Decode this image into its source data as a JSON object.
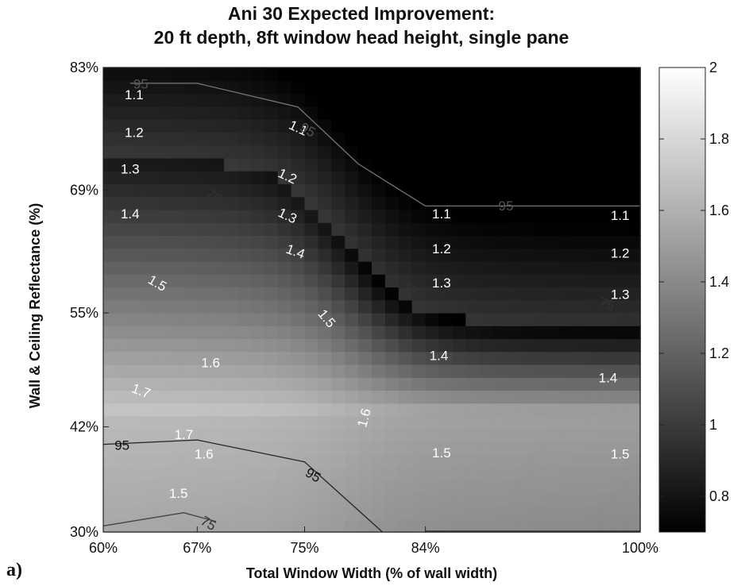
{
  "chart_data": {
    "type": "heatmap",
    "title_lines": [
      "Ani 30 Expected Improvement:",
      "20 ft depth, 8ft window head height, single pane"
    ],
    "xlabel": "Total Window Width (% of wall width)",
    "ylabel": "Wall & Ceiling Reflectance (%)",
    "x": [
      60,
      67,
      75,
      84,
      100
    ],
    "x_tick_labels": [
      "60%",
      "67%",
      "75%",
      "84%",
      "100%"
    ],
    "y": [
      30,
      42,
      55,
      69,
      83
    ],
    "y_tick_labels": [
      "30%",
      "42%",
      "55%",
      "69%",
      "83%"
    ],
    "xlim": [
      60,
      100
    ],
    "ylim": [
      30,
      83
    ],
    "colorbar": {
      "range": [
        0.7,
        2.0
      ],
      "ticks": [
        0.8,
        1.0,
        1.2,
        1.4,
        1.6,
        1.8,
        2.0
      ],
      "tick_labels": [
        "0.8",
        "1",
        "1.2",
        "1.4",
        "1.6",
        "1.8",
        "2"
      ],
      "colormap": "gray"
    },
    "value_levels": [
      "1.1",
      "1.2",
      "1.3",
      "1.4",
      "1.5",
      "1.6",
      "1.7"
    ],
    "contour_labels": [
      {
        "text": "1.1",
        "x": 62.3,
        "y": 79.8,
        "angle": 0,
        "color": "white"
      },
      {
        "text": "1.2",
        "x": 62.3,
        "y": 75.5,
        "angle": 0,
        "color": "white"
      },
      {
        "text": "1.3",
        "x": 62.0,
        "y": 71.3,
        "angle": 0,
        "color": "white"
      },
      {
        "text": "1.4",
        "x": 62.0,
        "y": 66.2,
        "angle": 0,
        "color": "white"
      },
      {
        "text": "1.5",
        "x": 64.0,
        "y": 58.3,
        "angle": 30,
        "color": "white"
      },
      {
        "text": "1.6",
        "x": 68.0,
        "y": 49.2,
        "angle": 0,
        "color": "white"
      },
      {
        "text": "1.7",
        "x": 62.8,
        "y": 46.0,
        "angle": 20,
        "color": "white"
      },
      {
        "text": "1.7",
        "x": 66.0,
        "y": 41.0,
        "angle": 0,
        "color": "white"
      },
      {
        "text": "1.6",
        "x": 67.5,
        "y": 38.8,
        "angle": 0,
        "color": "white"
      },
      {
        "text": "1.5",
        "x": 65.6,
        "y": 34.3,
        "angle": 0,
        "color": "white"
      },
      {
        "text": "1.1",
        "x": 74.5,
        "y": 76.0,
        "angle": 25,
        "color": "white"
      },
      {
        "text": "1.2",
        "x": 73.7,
        "y": 70.5,
        "angle": 25,
        "color": "white"
      },
      {
        "text": "1.3",
        "x": 73.7,
        "y": 66.0,
        "angle": 25,
        "color": "white"
      },
      {
        "text": "1.4",
        "x": 74.3,
        "y": 61.9,
        "angle": 20,
        "color": "white"
      },
      {
        "text": "1.5",
        "x": 76.6,
        "y": 54.3,
        "angle": 50,
        "color": "white"
      },
      {
        "text": "1.6",
        "x": 79.5,
        "y": 43.0,
        "angle": -75,
        "color": "white"
      },
      {
        "text": "1.1",
        "x": 85.2,
        "y": 66.2,
        "angle": 0,
        "color": "white"
      },
      {
        "text": "1.2",
        "x": 85.2,
        "y": 62.2,
        "angle": 0,
        "color": "white"
      },
      {
        "text": "1.3",
        "x": 85.2,
        "y": 58.3,
        "angle": 0,
        "color": "white"
      },
      {
        "text": "1.4",
        "x": 85.0,
        "y": 50.0,
        "angle": 0,
        "color": "white"
      },
      {
        "text": "1.5",
        "x": 85.2,
        "y": 38.9,
        "angle": 0,
        "color": "white"
      },
      {
        "text": "1.1",
        "x": 98.5,
        "y": 66.0,
        "angle": 0,
        "color": "white"
      },
      {
        "text": "1.2",
        "x": 98.5,
        "y": 61.7,
        "angle": 0,
        "color": "white"
      },
      {
        "text": "1.3",
        "x": 98.5,
        "y": 57.0,
        "angle": 0,
        "color": "white"
      },
      {
        "text": "1.4",
        "x": 97.6,
        "y": 47.5,
        "angle": 0,
        "color": "white"
      },
      {
        "text": "1.5",
        "x": 98.5,
        "y": 38.8,
        "angle": 0,
        "color": "white"
      },
      {
        "text": "95",
        "x": 62.8,
        "y": 81.0,
        "angle": 0,
        "color": "#555555"
      },
      {
        "text": "95",
        "x": 75.2,
        "y": 75.8,
        "angle": 30,
        "color": "#555555"
      },
      {
        "text": "95",
        "x": 90.0,
        "y": 67.1,
        "angle": 0,
        "color": "#555555"
      },
      {
        "text": "95",
        "x": 61.4,
        "y": 39.8,
        "angle": 0,
        "color": "#111111"
      },
      {
        "text": "95",
        "x": 75.6,
        "y": 36.4,
        "angle": 30,
        "color": "#111111"
      },
      {
        "text": "75",
        "x": 68.2,
        "y": 68.2,
        "angle": 35,
        "color": "#333333"
      },
      {
        "text": "75",
        "x": 82.8,
        "y": 57.6,
        "angle": 30,
        "color": "#333333"
      },
      {
        "text": "75",
        "x": 97.5,
        "y": 55.9,
        "angle": 20,
        "color": "#333333"
      },
      {
        "text": "75",
        "x": 67.8,
        "y": 30.9,
        "angle": 30,
        "color": "#333333"
      }
    ],
    "iso_lines": [
      {
        "label": "95",
        "color": "#777777",
        "points": [
          [
            62,
            81.2
          ],
          [
            67,
            81.2
          ],
          [
            74.5,
            78.5
          ],
          [
            79,
            72
          ],
          [
            84,
            67.2
          ],
          [
            100,
            67.2
          ]
        ]
      },
      {
        "label": "95",
        "color": "#222222",
        "points": [
          [
            60,
            40
          ],
          [
            67,
            40.5
          ],
          [
            75,
            38
          ],
          [
            80.8,
            30
          ]
        ]
      },
      {
        "label": "75",
        "color": "#444444",
        "points": [
          [
            60,
            30.7
          ],
          [
            66,
            32.2
          ],
          [
            68.4,
            31.2
          ]
        ]
      },
      {
        "label": "95",
        "color": "#333333",
        "points": [
          [
            84,
            30.1
          ],
          [
            100,
            30.1
          ]
        ]
      }
    ]
  },
  "panel_tag": "a)"
}
